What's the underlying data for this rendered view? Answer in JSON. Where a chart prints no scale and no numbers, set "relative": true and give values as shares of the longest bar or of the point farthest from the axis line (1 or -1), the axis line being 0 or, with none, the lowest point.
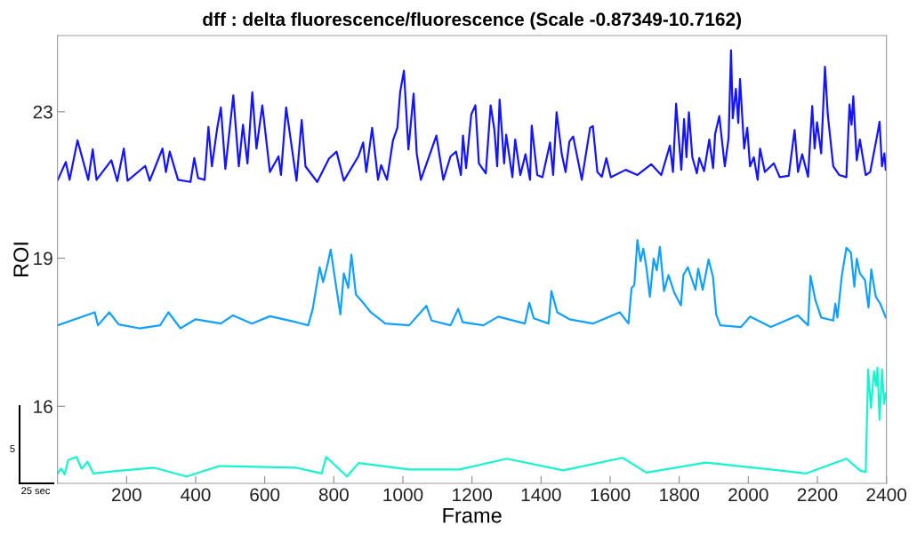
{
  "chart_data": {
    "type": "line",
    "relative": true,
    "title": "dff : delta fluorescence/fluorescence (Scale -0.87349-10.7162)",
    "xlabel": "Frame",
    "ylabel": "ROI",
    "xlim": [
      0,
      2400
    ],
    "xticks": [
      200,
      400,
      600,
      800,
      1000,
      1200,
      1400,
      1600,
      1800,
      2000,
      2200,
      2400
    ],
    "annotations": [
      "5",
      "25 sec"
    ],
    "series": [
      {
        "name": "23",
        "color": "#1414ff",
        "x": [
          1,
          24,
          35,
          58,
          89,
          102,
          113,
          156,
          173,
          192,
          203,
          254,
          267,
          304,
          314,
          325,
          349,
          385,
          396,
          407,
          426,
          437,
          447,
          462,
          473,
          486,
          509,
          525,
          537,
          550,
          564,
          576,
          593,
          615,
          640,
          647,
          662,
          692,
          707,
          718,
          752,
          786,
          808,
          829,
          871,
          885,
          894,
          911,
          928,
          937,
          954,
          971,
          984,
          992,
          1003,
          1016,
          1031,
          1040,
          1052,
          1097,
          1117,
          1138,
          1154,
          1168,
          1174,
          1183,
          1198,
          1210,
          1220,
          1240,
          1254,
          1265,
          1273,
          1280,
          1293,
          1299,
          1317,
          1325,
          1340,
          1355,
          1368,
          1373,
          1389,
          1404,
          1426,
          1435,
          1445,
          1460,
          1471,
          1482,
          1493,
          1518,
          1542,
          1550,
          1563,
          1576,
          1589,
          1602,
          1645,
          1679,
          1719,
          1748,
          1773,
          1782,
          1791,
          1806,
          1814,
          1821,
          1828,
          1838,
          1851,
          1858,
          1872,
          1887,
          1898,
          1904,
          1916,
          1932,
          1943,
          1950,
          1955,
          1964,
          1971,
          1976,
          1988,
          1997,
          2005,
          2016,
          2027,
          2034,
          2048,
          2074,
          2091,
          2117,
          2134,
          2144,
          2156,
          2173,
          2185,
          2192,
          2199,
          2211,
          2222,
          2230,
          2246,
          2263,
          2284,
          2293,
          2299,
          2304,
          2314,
          2323,
          2340,
          2353,
          2373,
          2380,
          2387,
          2394,
          2398
        ],
        "values": [
          0.701,
          0.742,
          0.701,
          0.792,
          0.701,
          0.771,
          0.701,
          0.746,
          0.698,
          0.773,
          0.699,
          0.733,
          0.699,
          0.773,
          0.719,
          0.766,
          0.701,
          0.696,
          0.751,
          0.705,
          0.701,
          0.823,
          0.732,
          0.818,
          0.868,
          0.726,
          0.896,
          0.732,
          0.828,
          0.739,
          0.903,
          0.773,
          0.873,
          0.719,
          0.755,
          0.712,
          0.868,
          0.699,
          0.839,
          0.732,
          0.696,
          0.75,
          0.766,
          0.699,
          0.755,
          0.787,
          0.719,
          0.821,
          0.701,
          0.735,
          0.701,
          0.791,
          0.821,
          0.903,
          0.953,
          0.771,
          0.9,
          0.762,
          0.701,
          0.803,
          0.701,
          0.755,
          0.766,
          0.712,
          0.803,
          0.728,
          0.852,
          0.873,
          0.739,
          0.716,
          0.873,
          0.816,
          0.732,
          0.886,
          0.739,
          0.805,
          0.707,
          0.794,
          0.712,
          0.76,
          0.701,
          0.826,
          0.712,
          0.707,
          0.787,
          0.712,
          0.857,
          0.76,
          0.719,
          0.789,
          0.801,
          0.701,
          0.821,
          0.825,
          0.719,
          0.708,
          0.751,
          0.707,
          0.724,
          0.712,
          0.737,
          0.712,
          0.78,
          0.719,
          0.877,
          0.724,
          0.841,
          0.753,
          0.857,
          0.753,
          0.716,
          0.751,
          0.721,
          0.794,
          0.728,
          0.807,
          0.848,
          0.732,
          0.798,
          1,
          0.843,
          0.911,
          0.832,
          0.934,
          0.773,
          0.821,
          0.732,
          0.753,
          0.701,
          0.773,
          0.719,
          0.739,
          0.707,
          0.71,
          0.816,
          0.719,
          0.76,
          0.708,
          0.871,
          0.773,
          0.834,
          0.762,
          0.962,
          0.852,
          0.732,
          0.712,
          0.707,
          0.875,
          0.828,
          0.894,
          0.746,
          0.794,
          0.712,
          0.719,
          0.803,
          0.835,
          0.732,
          0.762,
          0.724
        ]
      },
      {
        "name": "19",
        "color": "#12a0ff",
        "x": [
          1,
          108,
          117,
          150,
          177,
          237,
          297,
          321,
          356,
          400,
          473,
          508,
          563,
          615,
          692,
          726,
          739,
          759,
          769,
          780,
          791,
          804,
          819,
          829,
          842,
          851,
          864,
          885,
          907,
          949,
          1018,
          1068,
          1083,
          1138,
          1160,
          1173,
          1233,
          1276,
          1353,
          1366,
          1379,
          1422,
          1430,
          1447,
          1482,
          1550,
          1628,
          1653,
          1662,
          1670,
          1679,
          1688,
          1696,
          1705,
          1715,
          1726,
          1735,
          1744,
          1756,
          1769,
          1786,
          1805,
          1812,
          1825,
          1847,
          1855,
          1868,
          1885,
          1898,
          1907,
          1919,
          1979,
          2005,
          2065,
          2143,
          2173,
          2180,
          2194,
          2211,
          2246,
          2252,
          2258,
          2271,
          2284,
          2297,
          2307,
          2314,
          2323,
          2338,
          2348,
          2356,
          2369,
          2382,
          2398
        ],
        "values": [
          0.365,
          0.395,
          0.365,
          0.395,
          0.367,
          0.358,
          0.365,
          0.395,
          0.358,
          0.379,
          0.369,
          0.388,
          0.369,
          0.386,
          0.372,
          0.365,
          0.403,
          0.499,
          0.465,
          0.499,
          0.54,
          0.469,
          0.39,
          0.485,
          0.451,
          0.528,
          0.436,
          0.417,
          0.395,
          0.369,
          0.365,
          0.41,
          0.376,
          0.365,
          0.403,
          0.372,
          0.365,
          0.385,
          0.369,
          0.417,
          0.381,
          0.369,
          0.444,
          0.395,
          0.379,
          0.369,
          0.395,
          0.369,
          0.451,
          0.458,
          0.562,
          0.513,
          0.542,
          0.499,
          0.431,
          0.519,
          0.492,
          0.546,
          0.444,
          0.481,
          0.44,
          0.411,
          0.481,
          0.499,
          0.447,
          0.496,
          0.447,
          0.517,
          0.476,
          0.39,
          0.365,
          0.361,
          0.385,
          0.361,
          0.388,
          0.365,
          0.479,
          0.424,
          0.383,
          0.376,
          0.415,
          0.383,
          0.481,
          0.544,
          0.533,
          0.454,
          0.519,
          0.485,
          0.469,
          0.406,
          0.494,
          0.431,
          0.415,
          0.383
        ]
      },
      {
        "name": "16",
        "color": "#14f5cf",
        "x": [
          1,
          10,
          21,
          31,
          55,
          70,
          87,
          104,
          177,
          280,
          374,
          469,
          692,
          765,
          778,
          838,
          872,
          1018,
          1164,
          1301,
          1464,
          1636,
          1705,
          1877,
          2065,
          2168,
          2284,
          2323,
          2340,
          2347,
          2355,
          2364,
          2370,
          2374,
          2380,
          2387,
          2393,
          2398
        ],
        "values": [
          0.023,
          0.034,
          0.021,
          0.054,
          0.061,
          0.034,
          0.05,
          0.023,
          0.029,
          0.036,
          0.016,
          0.04,
          0.036,
          0.023,
          0.061,
          0.016,
          0.047,
          0.032,
          0.032,
          0.057,
          0.03,
          0.059,
          0.025,
          0.048,
          0.032,
          0.023,
          0.057,
          0.03,
          0.026,
          0.263,
          0.174,
          0.259,
          0.225,
          0.267,
          0.147,
          0.263,
          0.184,
          0.208
        ]
      }
    ]
  }
}
